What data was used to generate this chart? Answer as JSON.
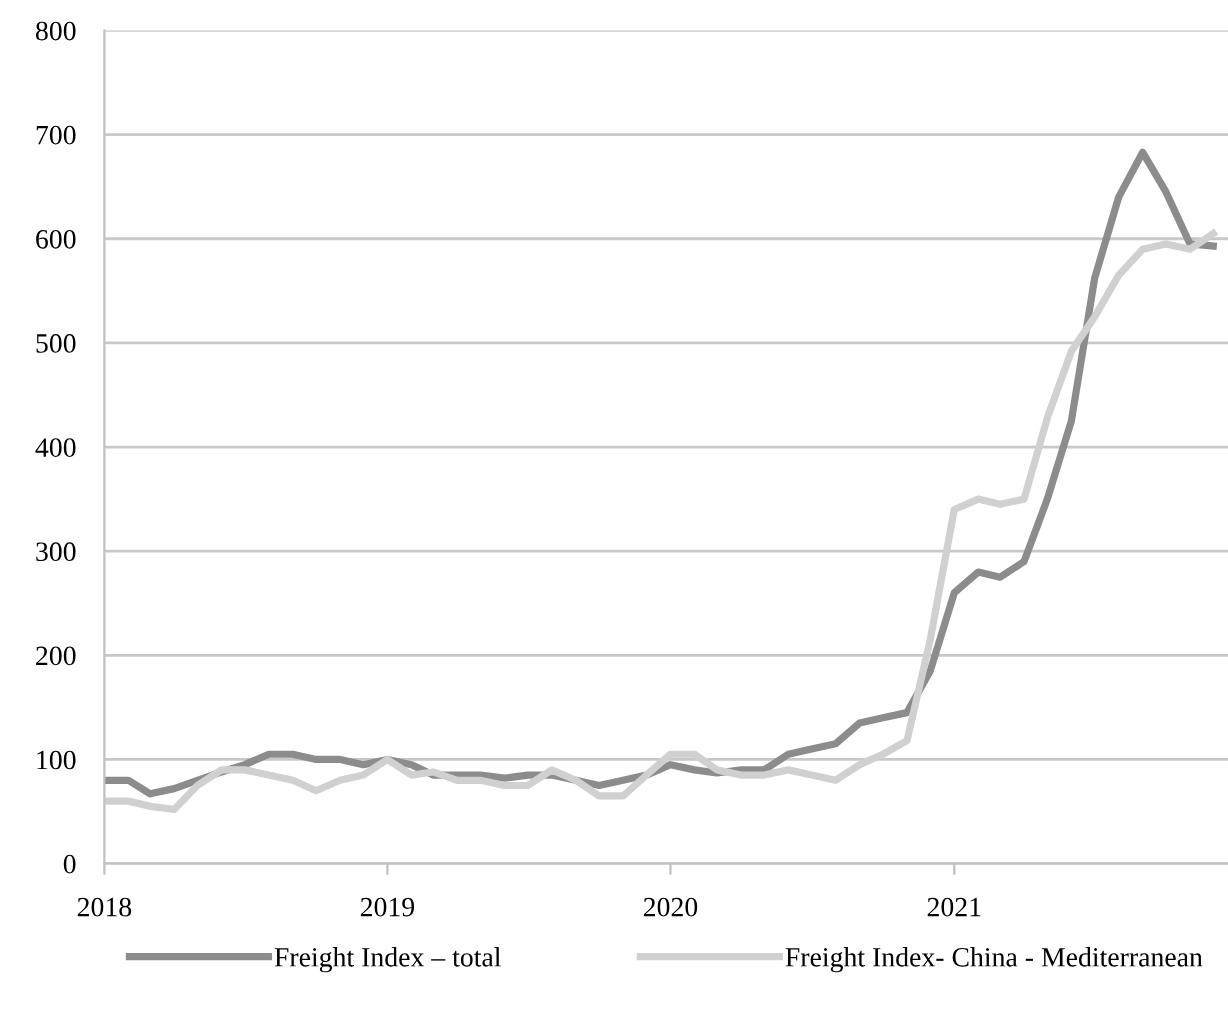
{
  "chart_data": {
    "type": "line",
    "x": [
      "2018-01",
      "2018-02",
      "2018-03",
      "2018-04",
      "2018-05",
      "2018-06",
      "2018-07",
      "2018-08",
      "2018-09",
      "2018-10",
      "2018-11",
      "2018-12",
      "2019-01",
      "2019-02",
      "2019-03",
      "2019-04",
      "2019-05",
      "2019-06",
      "2019-07",
      "2019-08",
      "2019-09",
      "2019-10",
      "2019-11",
      "2019-12",
      "2020-01",
      "2020-02",
      "2020-03",
      "2020-04",
      "2020-05",
      "2020-06",
      "2020-07",
      "2020-08",
      "2020-09",
      "2020-10",
      "2020-11",
      "2020-12",
      "2021-01",
      "2021-02",
      "2021-03",
      "2021-04",
      "2021-05",
      "2021-06",
      "2021-07",
      "2021-08",
      "2021-09",
      "2021-10",
      "2021-11",
      "2021-12"
    ],
    "series": [
      {
        "name": "Freight Index – total",
        "color": "#8c8c8c",
        "values": [
          80,
          80,
          67,
          72,
          80,
          88,
          95,
          105,
          105,
          100,
          100,
          95,
          100,
          95,
          85,
          85,
          85,
          82,
          85,
          85,
          80,
          75,
          80,
          85,
          95,
          90,
          87,
          90,
          90,
          105,
          110,
          115,
          135,
          140,
          145,
          185,
          260,
          280,
          275,
          290,
          350,
          425,
          562,
          640,
          683,
          645,
          595,
          593
        ]
      },
      {
        "name": "Freight Index- China - Mediterranean",
        "color": "#d0d0d0",
        "values": [
          60,
          60,
          55,
          52,
          75,
          90,
          90,
          85,
          80,
          70,
          80,
          85,
          100,
          85,
          88,
          80,
          80,
          75,
          75,
          90,
          80,
          65,
          65,
          85,
          105,
          105,
          90,
          85,
          85,
          90,
          85,
          80,
          95,
          105,
          118,
          215,
          340,
          350,
          345,
          350,
          428,
          492,
          525,
          565,
          590,
          595,
          590,
          605
        ]
      }
    ],
    "xlim": [
      "2018-01-01",
      "2021-12-20"
    ],
    "xticks": [
      {
        "value": "2018-01-01",
        "label": "2018"
      },
      {
        "value": "2019-01-01",
        "label": "2019"
      },
      {
        "value": "2020-01-01",
        "label": "2020"
      },
      {
        "value": "2021-01-01",
        "label": "2021"
      }
    ],
    "ylim": [
      0,
      800
    ],
    "yticks": [
      0,
      100,
      200,
      300,
      400,
      500,
      600,
      700,
      800
    ],
    "grid": "y",
    "legend": "bottom",
    "marker": "none",
    "line_style": "solid"
  }
}
